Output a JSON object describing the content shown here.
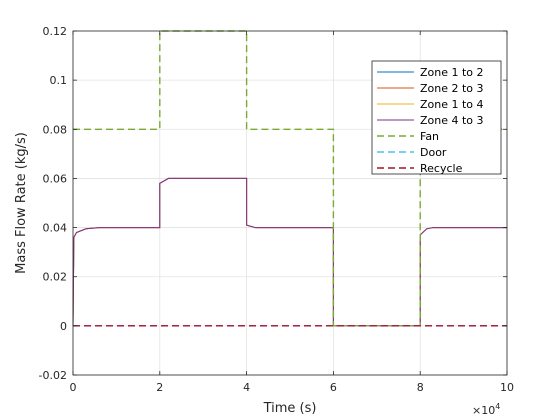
{
  "chart_data": {
    "type": "line",
    "xlabel": "Time (s)",
    "ylabel": "Mass Flow Rate (kg/s)",
    "x_exponent_label": "×10",
    "x_exponent_power": "4",
    "x_scale": 10000,
    "xlim": [
      0,
      100000
    ],
    "ylim": [
      -0.02,
      0.12
    ],
    "x_ticks": [
      0,
      20000,
      40000,
      60000,
      80000,
      100000
    ],
    "x_tick_labels": [
      "0",
      "2",
      "4",
      "6",
      "8",
      "10"
    ],
    "y_ticks": [
      -0.02,
      0,
      0.02,
      0.04,
      0.06,
      0.08,
      0.1,
      0.12
    ],
    "y_tick_labels": [
      "-0.02",
      "0",
      "0.02",
      "0.04",
      "0.06",
      "0.08",
      "0.1",
      "0.12"
    ],
    "grid": true,
    "legend_position": "top-right",
    "series": [
      {
        "name": "Zone 1 to 2",
        "color": "#0072BD",
        "dash": "solid",
        "points": [
          [
            0,
            0
          ],
          [
            200,
            0.036
          ],
          [
            800,
            0.038
          ],
          [
            3000,
            0.0395
          ],
          [
            6000,
            0.04
          ],
          [
            20000,
            0.04
          ],
          [
            20000,
            0.058
          ],
          [
            22000,
            0.06
          ],
          [
            40000,
            0.06
          ],
          [
            40000,
            0.041
          ],
          [
            42000,
            0.04
          ],
          [
            60000,
            0.04
          ],
          [
            60000,
            0
          ],
          [
            80000,
            0
          ],
          [
            80000,
            0.037
          ],
          [
            81500,
            0.0395
          ],
          [
            83000,
            0.04
          ],
          [
            100000,
            0.04
          ]
        ]
      },
      {
        "name": "Zone 2 to 3",
        "color": "#D95319",
        "dash": "solid",
        "points": [
          [
            0,
            0
          ],
          [
            200,
            0.036
          ],
          [
            800,
            0.038
          ],
          [
            3000,
            0.0395
          ],
          [
            6000,
            0.04
          ],
          [
            20000,
            0.04
          ],
          [
            20000,
            0.058
          ],
          [
            22000,
            0.06
          ],
          [
            40000,
            0.06
          ],
          [
            40000,
            0.041
          ],
          [
            42000,
            0.04
          ],
          [
            60000,
            0.04
          ],
          [
            60000,
            0
          ],
          [
            80000,
            0
          ],
          [
            80000,
            0.037
          ],
          [
            81500,
            0.0395
          ],
          [
            83000,
            0.04
          ],
          [
            100000,
            0.04
          ]
        ]
      },
      {
        "name": "Zone 1 to 4",
        "color": "#EDB120",
        "dash": "solid",
        "points": [
          [
            0,
            0
          ],
          [
            200,
            0.036
          ],
          [
            800,
            0.038
          ],
          [
            3000,
            0.0395
          ],
          [
            6000,
            0.04
          ],
          [
            20000,
            0.04
          ],
          [
            20000,
            0.058
          ],
          [
            22000,
            0.06
          ],
          [
            40000,
            0.06
          ],
          [
            40000,
            0.041
          ],
          [
            42000,
            0.04
          ],
          [
            60000,
            0.04
          ],
          [
            60000,
            0
          ],
          [
            80000,
            0
          ],
          [
            80000,
            0.037
          ],
          [
            81500,
            0.0395
          ],
          [
            83000,
            0.04
          ],
          [
            100000,
            0.04
          ]
        ]
      },
      {
        "name": "Zone 4 to 3",
        "color": "#7E2F8E",
        "dash": "solid",
        "points": [
          [
            0,
            0
          ],
          [
            200,
            0.036
          ],
          [
            800,
            0.038
          ],
          [
            3000,
            0.0395
          ],
          [
            6000,
            0.04
          ],
          [
            20000,
            0.04
          ],
          [
            20000,
            0.058
          ],
          [
            22000,
            0.06
          ],
          [
            40000,
            0.06
          ],
          [
            40000,
            0.041
          ],
          [
            42000,
            0.04
          ],
          [
            60000,
            0.04
          ],
          [
            60000,
            0
          ],
          [
            80000,
            0
          ],
          [
            80000,
            0.037
          ],
          [
            81500,
            0.0395
          ],
          [
            83000,
            0.04
          ],
          [
            100000,
            0.04
          ]
        ]
      },
      {
        "name": "Fan",
        "color": "#77AC30",
        "dash": "dashed",
        "points": [
          [
            0,
            0.08
          ],
          [
            20000,
            0.08
          ],
          [
            20000,
            0.12
          ],
          [
            40000,
            0.12
          ],
          [
            40000,
            0.08
          ],
          [
            60000,
            0.08
          ],
          [
            60000,
            0
          ],
          [
            80000,
            0
          ],
          [
            80000,
            0.08
          ],
          [
            100000,
            0.08
          ]
        ]
      },
      {
        "name": "Door",
        "color": "#4DBEEE",
        "dash": "dashed",
        "points": [
          [
            0,
            0
          ],
          [
            100000,
            0
          ]
        ]
      },
      {
        "name": "Recycle",
        "color": "#A2142F",
        "dash": "dashed",
        "points": [
          [
            0,
            0
          ],
          [
            100000,
            0
          ]
        ]
      }
    ]
  }
}
